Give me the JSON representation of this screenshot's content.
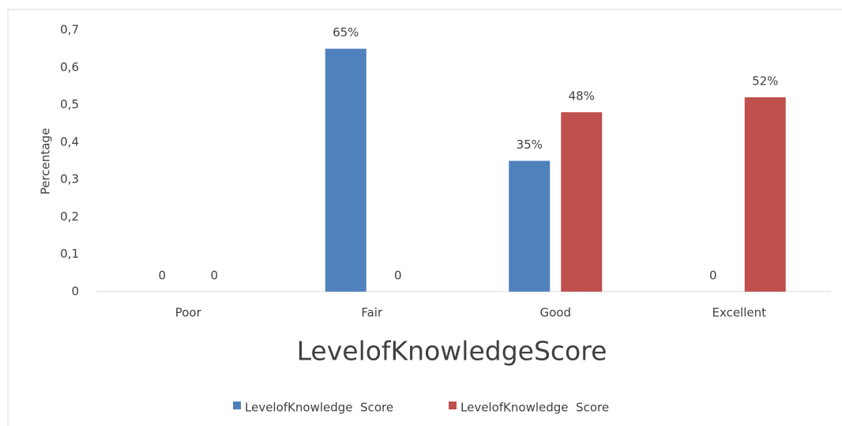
{
  "chart_data": {
    "type": "bar",
    "x_label": "LevelofKnowledgeScore",
    "y_label": "Percentage",
    "categories": [
      "Poor",
      "Fair",
      "Good",
      "Excellent"
    ],
    "series": [
      {
        "name": "LevelofKnowledge  Score",
        "color": "#4f81bd",
        "values": [
          0,
          0.65,
          0.35,
          0
        ],
        "value_labels": [
          "0",
          "65%",
          "35%",
          "0"
        ]
      },
      {
        "name": "LevelofKnowledge  Score",
        "color": "#c0504d",
        "values": [
          0,
          0,
          0.48,
          0.52
        ],
        "value_labels": [
          "0",
          "0",
          "48%",
          "52%"
        ]
      }
    ],
    "ylim": [
      0,
      0.7
    ],
    "yticks": [
      0,
      {
        "value": 0.1,
        "label": "0,1"
      },
      {
        "value": 0.2,
        "label": "0,2"
      },
      {
        "value": 0.3,
        "label": "0,3"
      },
      {
        "value": 0.4,
        "label": "0,4"
      },
      {
        "value": 0.5,
        "label": "0,5"
      },
      {
        "value": 0.6,
        "label": "0,6"
      },
      {
        "value": 0.7,
        "label": "0,7"
      }
    ],
    "grid": false,
    "legend": "bottom"
  }
}
